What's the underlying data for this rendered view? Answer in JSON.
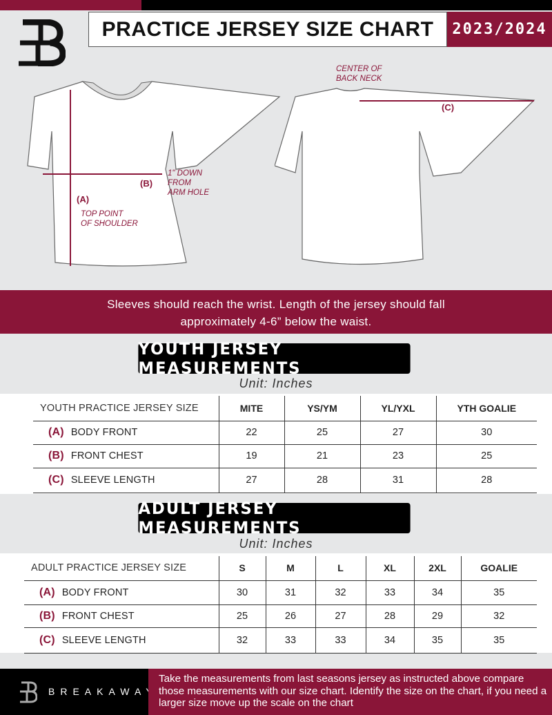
{
  "header": {
    "title": "PRACTICE JERSEY SIZE CHART",
    "season": "2023/2024",
    "brand_color": "#8a1538"
  },
  "diagram": {
    "label_a": "(A)",
    "label_b": "(B)",
    "label_c": "(C)",
    "note_a": "TOP POINT\nOF SHOULDER",
    "note_b": "1\" DOWN\nFROM\nARM HOLE",
    "note_c": "CENTER OF\nBACK NECK"
  },
  "instructions": "Sleeves should reach the wrist. Length of the jersey should fall approximately 4-6” below the waist.",
  "youth": {
    "title": "YOUTH JERSEY MEASUREMENTS",
    "unit": "Unit: Inches",
    "headers": [
      "YOUTH PRACTICE JERSEY SIZE",
      "MITE",
      "YS/YM",
      "YL/YXL",
      "YTH GOALIE"
    ],
    "rows": [
      {
        "letter": "(A)",
        "label": "BODY FRONT",
        "values": [
          "22",
          "25",
          "27",
          "30"
        ]
      },
      {
        "letter": "(B)",
        "label": "FRONT CHEST",
        "values": [
          "19",
          "21",
          "23",
          "25"
        ]
      },
      {
        "letter": "(C)",
        "label": "SLEEVE LENGTH",
        "values": [
          "27",
          "28",
          "31",
          "28"
        ]
      }
    ]
  },
  "adult": {
    "title": "ADULT JERSEY MEASUREMENTS",
    "unit": "Unit: Inches",
    "headers": [
      "ADULT PRACTICE JERSEY SIZE",
      "S",
      "M",
      "L",
      "XL",
      "2XL",
      "GOALIE"
    ],
    "rows": [
      {
        "letter": "(A)",
        "label": "BODY FRONT",
        "values": [
          "30",
          "31",
          "32",
          "33",
          "34",
          "35"
        ]
      },
      {
        "letter": "(B)",
        "label": "FRONT CHEST",
        "values": [
          "25",
          "26",
          "27",
          "28",
          "29",
          "32"
        ]
      },
      {
        "letter": "(C)",
        "label": "SLEEVE LENGTH",
        "values": [
          "32",
          "33",
          "33",
          "34",
          "35",
          "35"
        ]
      }
    ]
  },
  "footer": {
    "brand": "BREAKAWAY",
    "text": "Take the measurements from last seasons jersey as instructed above compare those measurements  with our size chart. Identify the size on the chart, if you need a larger size move up the scale on the chart"
  }
}
